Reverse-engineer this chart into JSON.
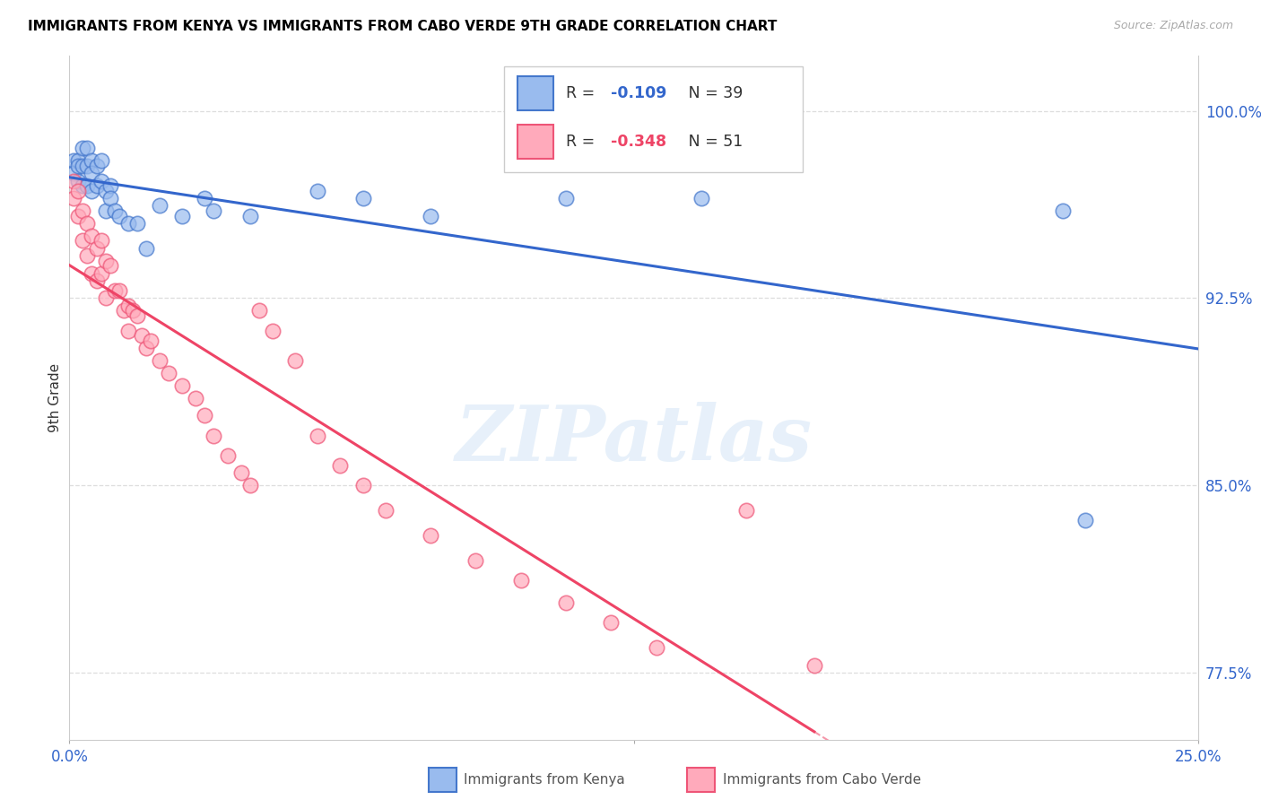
{
  "title": "IMMIGRANTS FROM KENYA VS IMMIGRANTS FROM CABO VERDE 9TH GRADE CORRELATION CHART",
  "source": "Source: ZipAtlas.com",
  "ylabel": "9th Grade",
  "xlim": [
    0.0,
    0.25
  ],
  "ylim": [
    0.748,
    1.022
  ],
  "yticks": [
    0.775,
    0.85,
    0.925,
    1.0
  ],
  "ytick_labels": [
    "77.5%",
    "85.0%",
    "92.5%",
    "100.0%"
  ],
  "xtick_vals": [
    0.0,
    0.125,
    0.25
  ],
  "xtick_labels": [
    "0.0%",
    "",
    "25.0%"
  ],
  "kenya_R": -0.109,
  "kenya_N": 39,
  "caboverde_R": -0.348,
  "caboverde_N": 51,
  "kenya_fill": "#99BBEE",
  "caboverde_fill": "#FFAABB",
  "kenya_edge": "#4477CC",
  "caboverde_edge": "#EE5577",
  "kenya_line": "#3366CC",
  "caboverde_line": "#EE4466",
  "watermark": "ZIPatlas",
  "kenya_x": [
    0.001,
    0.001,
    0.002,
    0.002,
    0.002,
    0.003,
    0.003,
    0.003,
    0.004,
    0.004,
    0.004,
    0.005,
    0.005,
    0.005,
    0.006,
    0.006,
    0.007,
    0.007,
    0.008,
    0.008,
    0.009,
    0.009,
    0.01,
    0.011,
    0.013,
    0.015,
    0.017,
    0.02,
    0.025,
    0.03,
    0.032,
    0.04,
    0.055,
    0.065,
    0.08,
    0.11,
    0.14,
    0.22,
    0.225
  ],
  "kenya_y": [
    0.98,
    0.975,
    0.98,
    0.978,
    0.972,
    0.985,
    0.978,
    0.97,
    0.985,
    0.978,
    0.97,
    0.98,
    0.975,
    0.968,
    0.978,
    0.97,
    0.98,
    0.972,
    0.968,
    0.96,
    0.97,
    0.965,
    0.96,
    0.958,
    0.955,
    0.955,
    0.945,
    0.962,
    0.958,
    0.965,
    0.96,
    0.958,
    0.968,
    0.965,
    0.958,
    0.965,
    0.965,
    0.96,
    0.836
  ],
  "caboverde_x": [
    0.001,
    0.001,
    0.002,
    0.002,
    0.003,
    0.003,
    0.004,
    0.004,
    0.005,
    0.005,
    0.006,
    0.006,
    0.007,
    0.007,
    0.008,
    0.008,
    0.009,
    0.01,
    0.011,
    0.012,
    0.013,
    0.013,
    0.014,
    0.015,
    0.016,
    0.017,
    0.018,
    0.02,
    0.022,
    0.025,
    0.028,
    0.03,
    0.032,
    0.035,
    0.038,
    0.04,
    0.042,
    0.045,
    0.05,
    0.055,
    0.06,
    0.065,
    0.07,
    0.08,
    0.09,
    0.1,
    0.11,
    0.12,
    0.13,
    0.15,
    0.165
  ],
  "caboverde_y": [
    0.972,
    0.965,
    0.968,
    0.958,
    0.96,
    0.948,
    0.955,
    0.942,
    0.95,
    0.935,
    0.945,
    0.932,
    0.948,
    0.935,
    0.94,
    0.925,
    0.938,
    0.928,
    0.928,
    0.92,
    0.922,
    0.912,
    0.92,
    0.918,
    0.91,
    0.905,
    0.908,
    0.9,
    0.895,
    0.89,
    0.885,
    0.878,
    0.87,
    0.862,
    0.855,
    0.85,
    0.92,
    0.912,
    0.9,
    0.87,
    0.858,
    0.85,
    0.84,
    0.83,
    0.82,
    0.812,
    0.803,
    0.795,
    0.785,
    0.84,
    0.778
  ]
}
